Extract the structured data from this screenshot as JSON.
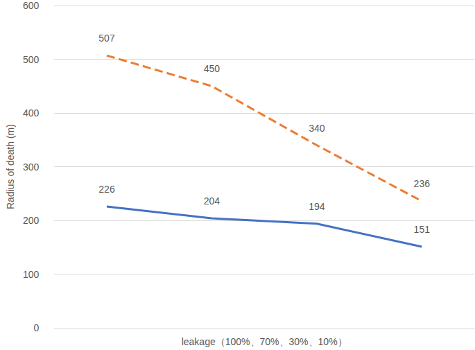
{
  "chart_data": {
    "type": "line",
    "x_label": "leakage（100%、70%、30%、10%）",
    "y_label": "Radius of death (m)",
    "categories": [
      null,
      null,
      null,
      null
    ],
    "series": [
      {
        "color": "#ed7d31",
        "line_style": "dashed",
        "values": [
          507,
          450,
          340,
          236
        ]
      },
      {
        "color": "#4472c4",
        "line_style": "solid",
        "values": [
          226,
          204,
          194,
          151
        ]
      }
    ],
    "ylim": [
      0,
      600
    ],
    "yticks": [
      0,
      100,
      200,
      300,
      400,
      500,
      600
    ],
    "grid": true,
    "data_labels": true,
    "marker": "none"
  }
}
